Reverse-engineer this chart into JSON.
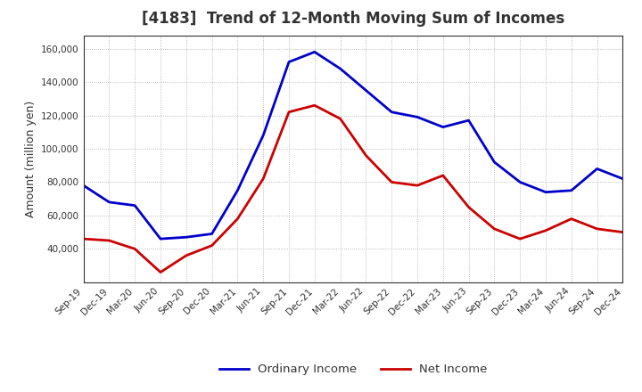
{
  "title": "[4183]  Trend of 12-Month Moving Sum of Incomes",
  "ylabel": "Amount (million yen)",
  "ylim": [
    20000,
    168000
  ],
  "yticks": [
    40000,
    60000,
    80000,
    100000,
    120000,
    140000,
    160000
  ],
  "x_labels": [
    "Sep-19",
    "Dec-19",
    "Mar-20",
    "Jun-20",
    "Sep-20",
    "Dec-20",
    "Mar-21",
    "Jun-21",
    "Sep-21",
    "Dec-21",
    "Mar-22",
    "Jun-22",
    "Sep-22",
    "Dec-22",
    "Mar-23",
    "Jun-23",
    "Sep-23",
    "Dec-23",
    "Mar-24",
    "Jun-24",
    "Sep-24",
    "Dec-24"
  ],
  "ordinary_income": [
    78000,
    68000,
    66000,
    46000,
    47000,
    49000,
    75000,
    108000,
    152000,
    158000,
    148000,
    135000,
    122000,
    119000,
    113000,
    117000,
    92000,
    80000,
    74000,
    75000,
    88000,
    82000
  ],
  "net_income": [
    46000,
    45000,
    40000,
    26000,
    36000,
    42000,
    58000,
    82000,
    122000,
    126000,
    118000,
    96000,
    80000,
    78000,
    84000,
    65000,
    52000,
    46000,
    51000,
    58000,
    52000,
    50000
  ],
  "ordinary_income_color": "#0000cc",
  "net_income_color": "#cc0000",
  "grid_color": "#aaaaaa",
  "background_color": "#ffffff",
  "title_color": "#333333",
  "line_width": 2.0
}
